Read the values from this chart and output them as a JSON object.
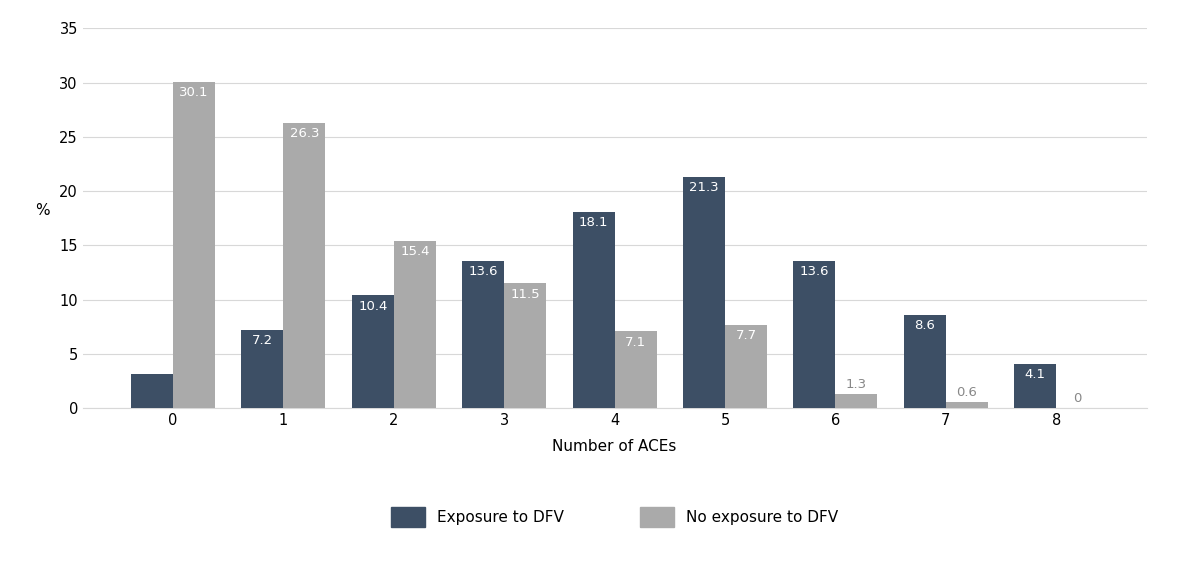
{
  "categories": [
    0,
    1,
    2,
    3,
    4,
    5,
    6,
    7,
    8
  ],
  "dfv_values": [
    3.2,
    7.2,
    10.4,
    13.6,
    18.1,
    21.3,
    13.6,
    8.6,
    4.1
  ],
  "no_dfv_values": [
    30.1,
    26.3,
    15.4,
    11.5,
    7.1,
    7.7,
    1.3,
    0.6,
    0.0
  ],
  "dfv_color": "#3d4f65",
  "no_dfv_color": "#aaaaaa",
  "xlabel": "Number of ACEs",
  "ylabel": "%",
  "ylim": [
    0,
    35
  ],
  "yticks": [
    0,
    5,
    10,
    15,
    20,
    25,
    30,
    35
  ],
  "bar_width": 0.38,
  "legend_labels": [
    "Exposure to DFV",
    "No exposure to DFV"
  ],
  "background_color": "#ffffff",
  "label_fontsize": 9.5,
  "axis_fontsize": 11,
  "tick_fontsize": 10.5,
  "inside_label_threshold": 3.5,
  "grid_color": "#d8d8d8",
  "grid_linewidth": 0.8
}
